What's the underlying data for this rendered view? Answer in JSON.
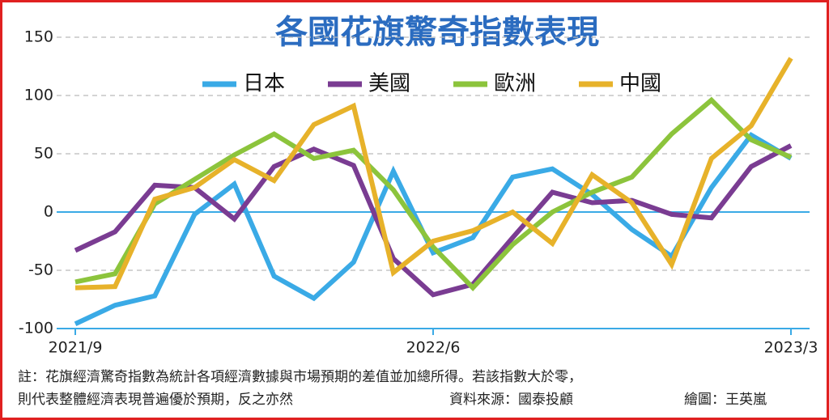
{
  "chart_data": {
    "type": "line",
    "title": "各國花旗驚奇指數表現",
    "categories": [
      "2021/9",
      null,
      null,
      null,
      null,
      null,
      null,
      null,
      null,
      "2022/6",
      null,
      null,
      null,
      null,
      null,
      null,
      null,
      null,
      "2023/3"
    ],
    "series": [
      {
        "name": "日本",
        "color": "#3aaae6",
        "values": [
          -96,
          -80,
          -72,
          -2,
          24,
          -55,
          -74,
          -43,
          35,
          -35,
          -22,
          30,
          37,
          15,
          -15,
          -38,
          21,
          66,
          46
        ]
      },
      {
        "name": "美國",
        "color": "#7a3c92",
        "values": [
          -33,
          -17,
          23,
          21,
          -6,
          39,
          54,
          40,
          -40,
          -71,
          -62,
          -22,
          17,
          8,
          10,
          -2,
          -5,
          39,
          57
        ]
      },
      {
        "name": "歐洲",
        "color": "#8cc43c",
        "values": [
          -60,
          -53,
          7,
          28,
          49,
          67,
          46,
          53,
          19,
          -30,
          -65,
          -28,
          0,
          17,
          30,
          67,
          96,
          62,
          47
        ]
      },
      {
        "name": "中國",
        "color": "#e7b22a",
        "values": [
          -65,
          -64,
          11,
          21,
          45,
          27,
          75,
          91,
          -52,
          -25,
          -16,
          0,
          -27,
          32,
          8,
          -45,
          46,
          74,
          132
        ]
      }
    ],
    "ylim": [
      -100,
      150
    ],
    "yticks": [
      -100,
      -50,
      0,
      50,
      100,
      150
    ],
    "grid": true,
    "note": [
      "註：花旗經濟驚奇指數為統計各項經濟數據與市場預期的差值並加總所得。若該指數大於零，",
      "則代表整體經濟表現普遍優於預期，反之亦然"
    ],
    "source": "資料來源：國泰投顧",
    "credit": "繪圖：王英嵐"
  }
}
